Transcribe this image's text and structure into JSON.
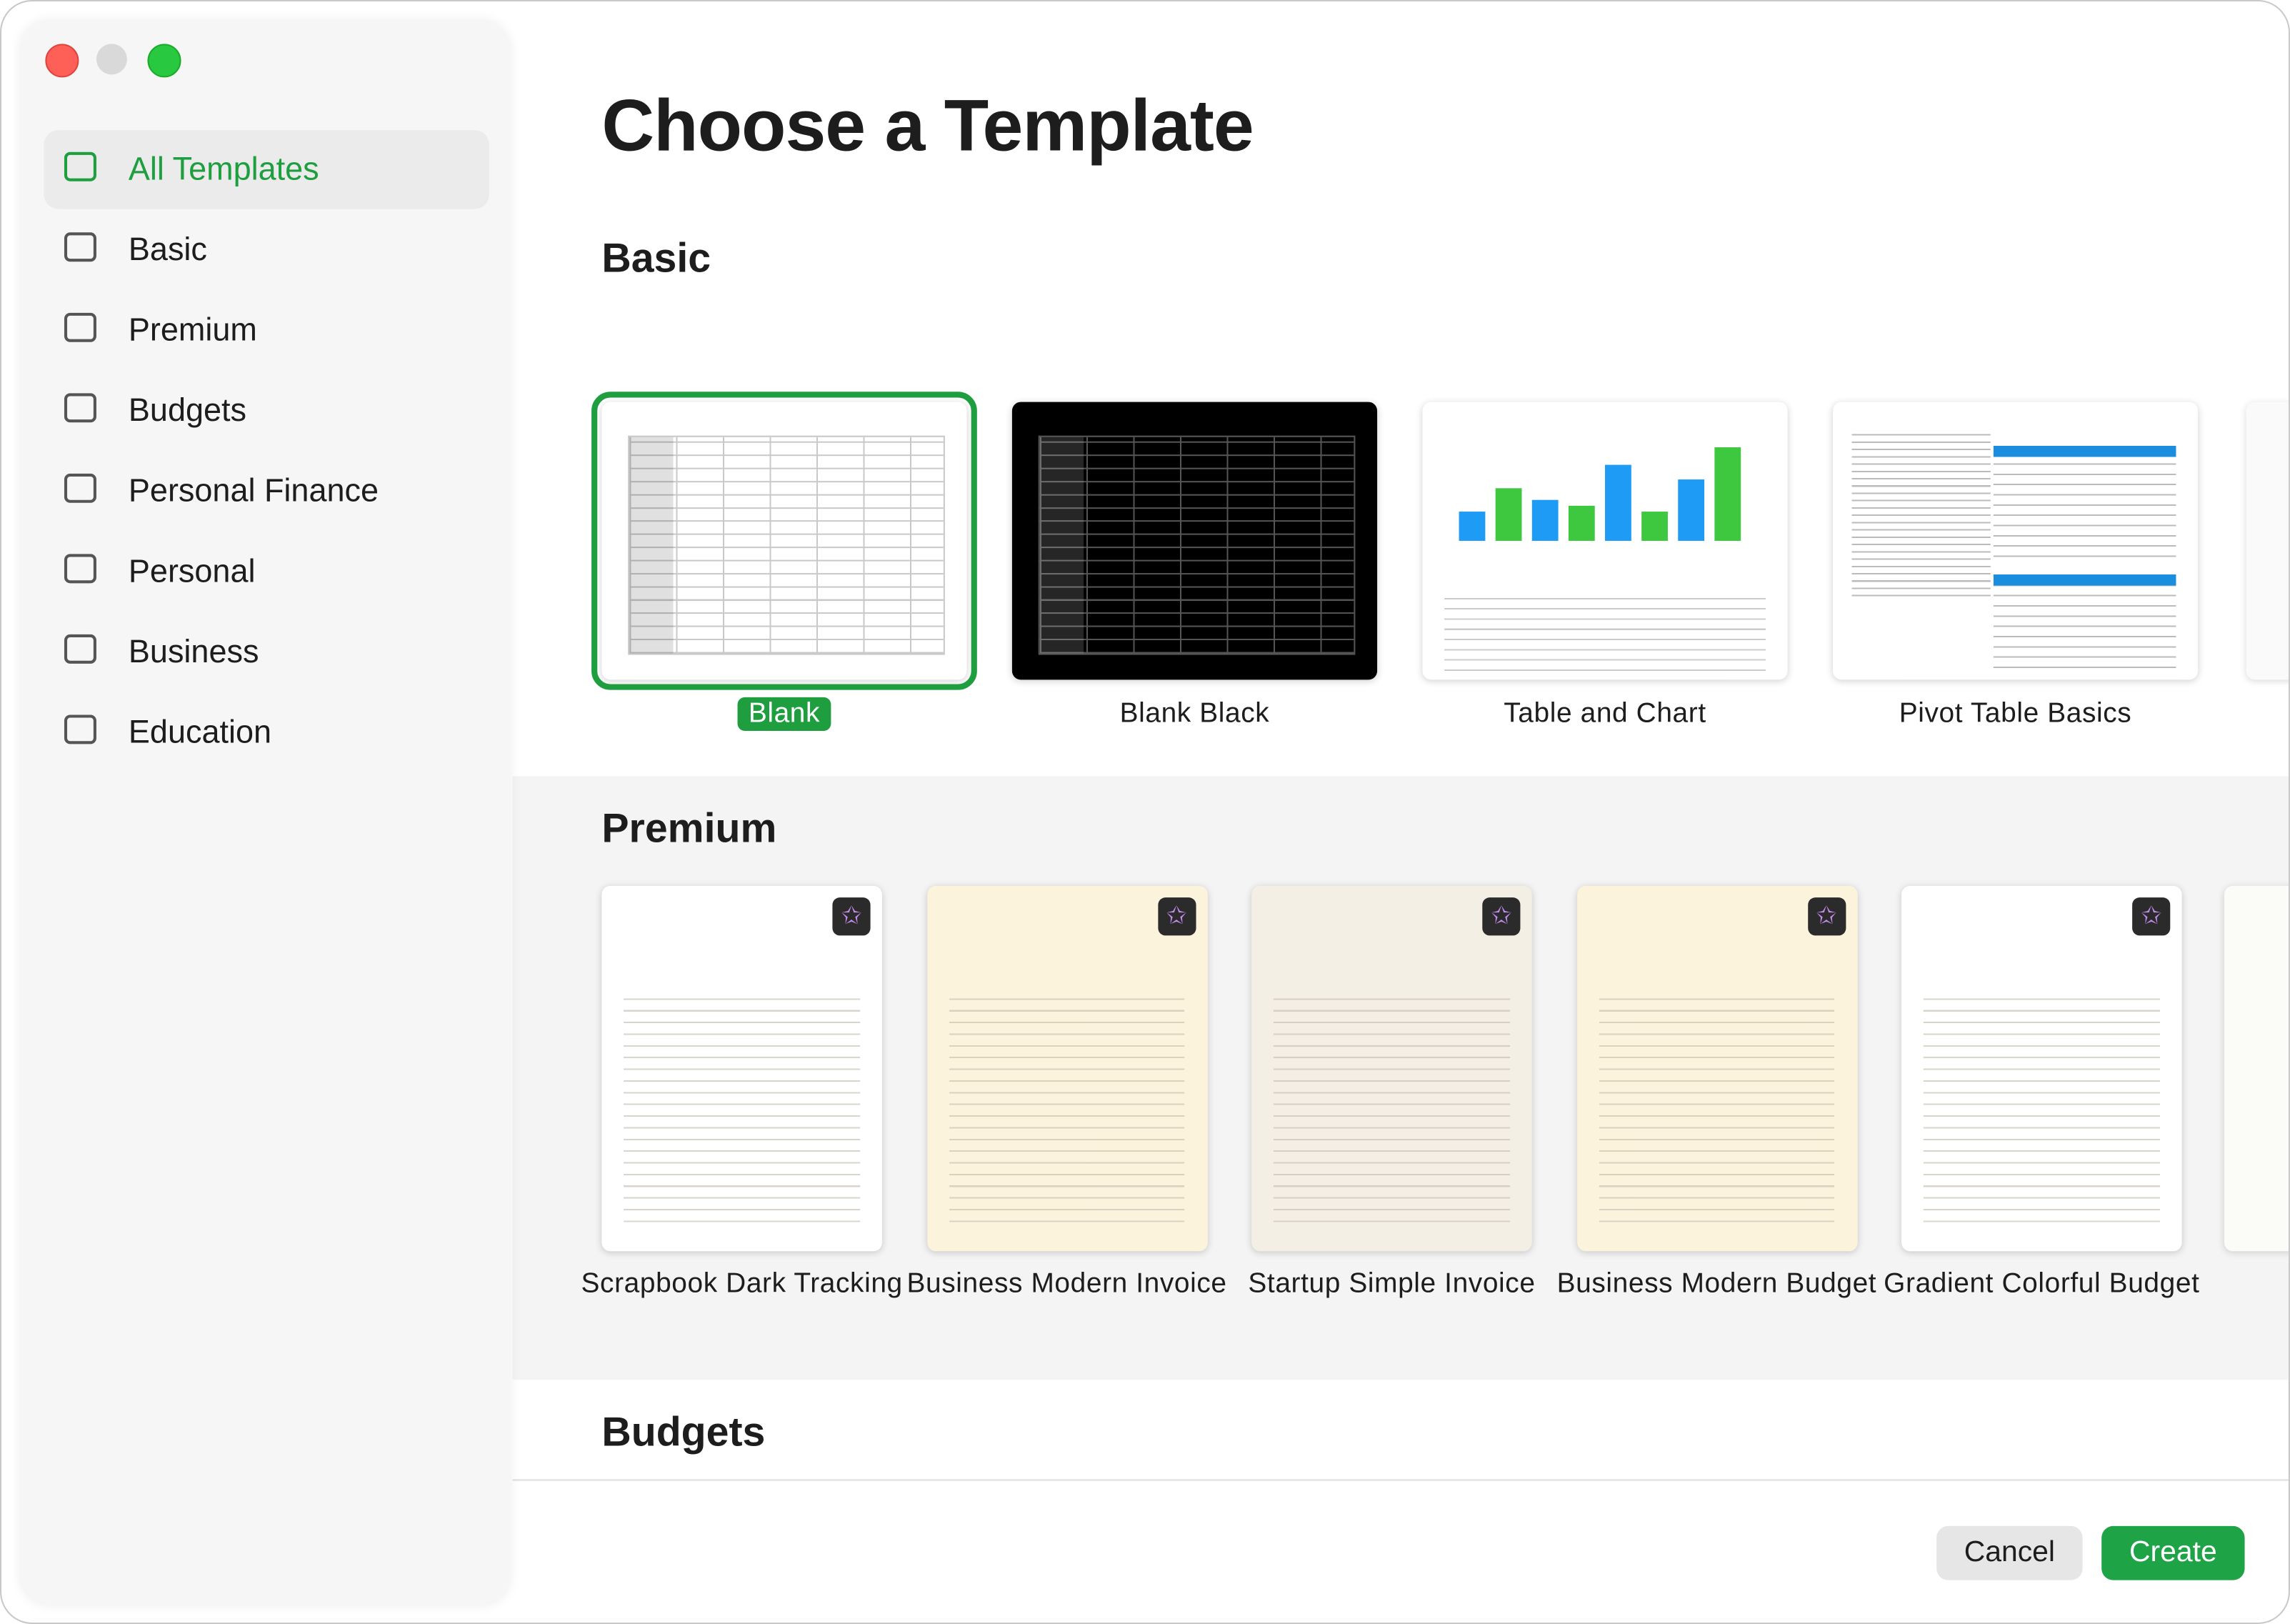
{
  "window": {
    "title": "Choose a Template"
  },
  "sidebar": {
    "items": [
      "All Templates",
      "Basic",
      "Premium",
      "Budgets",
      "Personal Finance",
      "Personal",
      "Business",
      "Education"
    ],
    "selected": 0
  },
  "sections": [
    {
      "title": "Basic",
      "templates": [
        "Blank",
        "Blank Black",
        "Table and Chart",
        "Pivot Table Basics"
      ],
      "selected": 0
    },
    {
      "title": "Premium",
      "templates": [
        "Scrapbook Dark Tracking",
        "Business Modern Invoice",
        "Startup Simple Invoice",
        "Business Modern Budget",
        "Gradient Colorful Budget"
      ]
    },
    {
      "title": "Budgets"
    }
  ],
  "buttons": {
    "cancel": "Cancel",
    "create": "Create"
  }
}
